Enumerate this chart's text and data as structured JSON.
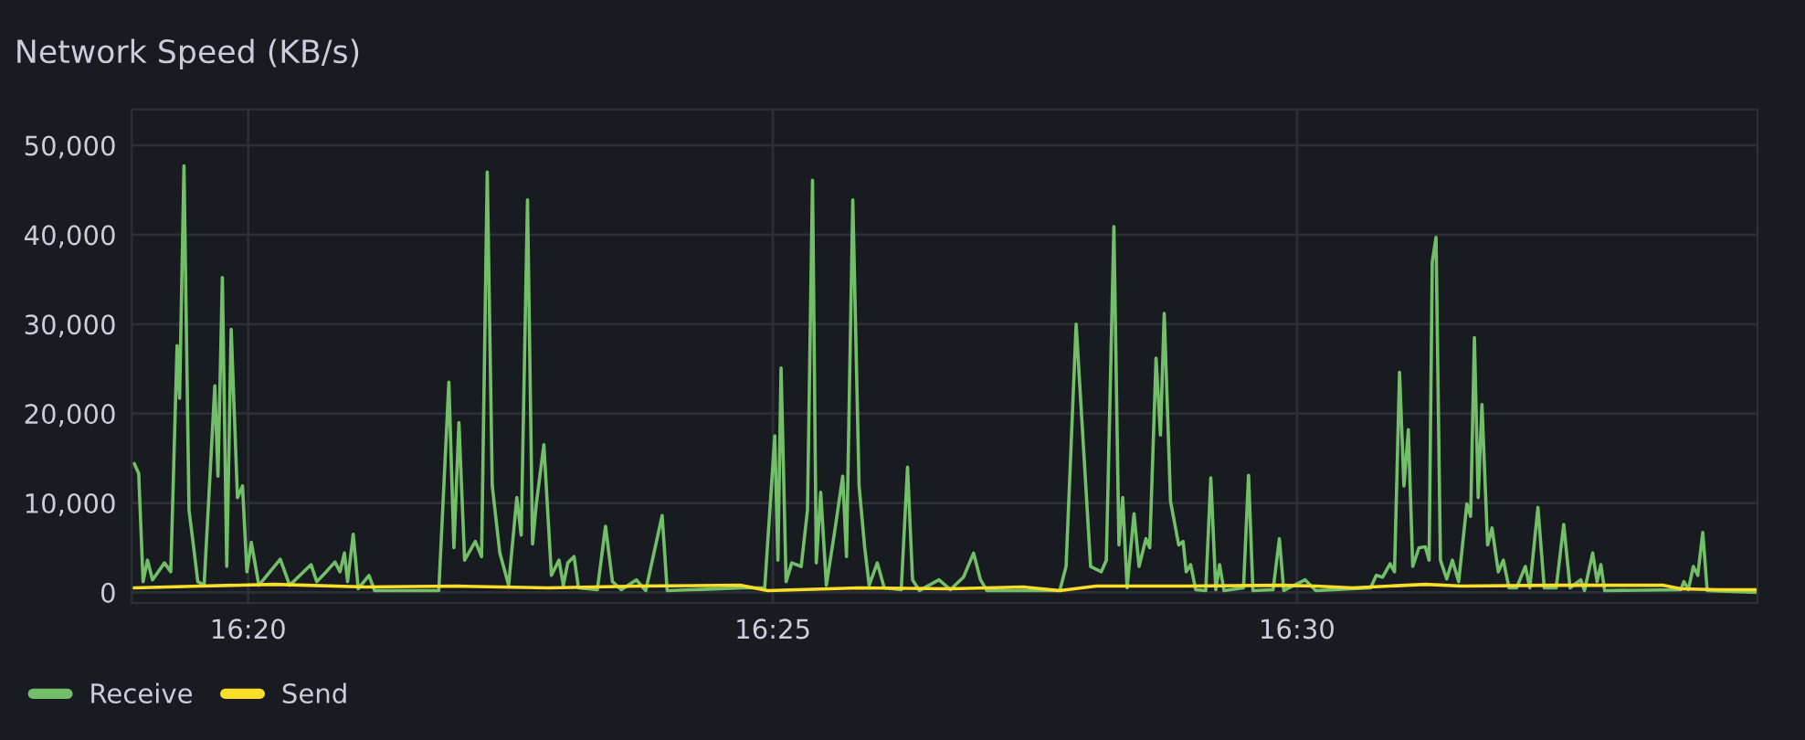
{
  "chart_data": {
    "type": "line",
    "title": "Network Speed (KB/s)",
    "xlim": [
      16.3148,
      16.5732
    ],
    "xticks": [
      {
        "value": 16.3333,
        "label": "16:20"
      },
      {
        "value": 16.4167,
        "label": "16:25"
      },
      {
        "value": 16.5,
        "label": "16:30"
      }
    ],
    "ylim": [
      -1200,
      54000
    ],
    "yticks": [
      0,
      {
        "value": 10000,
        "label": "10,000"
      },
      {
        "value": 20000,
        "label": "20,000"
      },
      {
        "value": 30000,
        "label": "30,000"
      },
      {
        "value": 40000,
        "label": "40,000"
      },
      {
        "value": 50000,
        "label": "50,000"
      }
    ],
    "grid": true,
    "legend": "bottom left",
    "marker": "none",
    "line_style": "solid",
    "series": [
      {
        "name": "Receive",
        "color": "#73bf69",
        "x": [
          16.3152,
          16.3159,
          16.3166,
          16.3173,
          16.3181,
          16.32,
          16.321,
          16.322,
          16.3224,
          16.3231,
          16.3239,
          16.3244,
          16.3253,
          16.3263,
          16.328,
          16.3285,
          16.3292,
          16.3299,
          16.3306,
          16.3316,
          16.3324,
          16.3331,
          16.3338,
          16.335,
          16.3384,
          16.3399,
          16.3433,
          16.3442,
          16.3457,
          16.3471,
          16.3479,
          16.3486,
          16.3491,
          16.35,
          16.3508,
          16.3525,
          16.3534,
          16.3636,
          16.3652,
          16.366,
          16.3668,
          16.3677,
          16.3694,
          16.3704,
          16.3713,
          16.3721,
          16.3733,
          16.3747,
          16.376,
          16.3767,
          16.3777,
          16.3785,
          16.3791,
          16.3803,
          16.3815,
          16.3827,
          16.3834,
          16.3841,
          16.3851,
          16.3858,
          16.3888,
          16.3901,
          16.3912,
          16.3926,
          16.395,
          16.3965,
          16.3991,
          16.3999,
          16.412,
          16.4154,
          16.417,
          16.4175,
          16.418,
          16.4188,
          16.4197,
          16.4212,
          16.4222,
          16.423,
          16.4236,
          16.4243,
          16.4252,
          16.4265,
          16.4278,
          16.4284,
          16.4294,
          16.4304,
          16.4313,
          16.432,
          16.4333,
          16.4344,
          16.4371,
          16.4381,
          16.4389,
          16.44,
          16.4431,
          16.4449,
          16.447,
          16.4486,
          16.4497,
          16.4507,
          16.4623,
          16.4633,
          16.4649,
          16.4672,
          16.4689,
          16.4697,
          16.4709,
          16.4717,
          16.4723,
          16.473,
          16.4741,
          16.4749,
          16.476,
          16.4766,
          16.4776,
          16.4783,
          16.4789,
          16.4799,
          16.4812,
          16.4819,
          16.4824,
          16.4831,
          16.4839,
          16.4855,
          16.4863,
          16.4871,
          16.4877,
          16.4884,
          16.4915,
          16.4923,
          16.493,
          16.4962,
          16.4972,
          16.4979,
          16.5013,
          16.503,
          16.5117,
          16.5126,
          16.5136,
          16.5148,
          16.5155,
          16.5163,
          16.517,
          16.5177,
          16.5184,
          16.5194,
          16.5204,
          16.521,
          16.5215,
          16.5221,
          16.5228,
          16.5238,
          16.5247,
          16.5257,
          16.527,
          16.5276,
          16.5282,
          16.5288,
          16.5294,
          16.5303,
          16.531,
          16.532,
          16.5328,
          16.5337,
          16.5349,
          16.5363,
          16.537,
          16.5383,
          16.5393,
          16.5412,
          16.5424,
          16.5434,
          16.5451,
          16.5457,
          16.547,
          16.5477,
          16.5483,
          16.5489,
          16.561,
          16.5615,
          16.5622,
          16.563,
          16.5637,
          16.5645,
          16.5652,
          16.5731
        ],
        "values": [
          14400,
          13300,
          1200,
          3600,
          1400,
          3300,
          2300,
          27600,
          21700,
          47700,
          9200,
          6400,
          1200,
          800,
          23100,
          13000,
          35200,
          2900,
          29400,
          10600,
          11900,
          2300,
          5600,
          800,
          3700,
          800,
          3100,
          1200,
          2300,
          3400,
          2300,
          4400,
          1200,
          6500,
          400,
          1900,
          200,
          200,
          23500,
          5000,
          19000,
          3600,
          5700,
          4000,
          47000,
          11900,
          4400,
          800,
          10600,
          6400,
          43900,
          5400,
          9900,
          16500,
          1900,
          3600,
          800,
          3300,
          4000,
          500,
          300,
          7400,
          1200,
          300,
          1400,
          200,
          8600,
          200,
          500,
          500,
          17500,
          3600,
          25100,
          1200,
          3300,
          2900,
          9200,
          46100,
          3300,
          11200,
          800,
          6700,
          13000,
          4000,
          43900,
          11900,
          5000,
          800,
          3300,
          500,
          300,
          14000,
          1400,
          200,
          1400,
          300,
          1700,
          4400,
          1400,
          200,
          200,
          2900,
          30000,
          2900,
          2300,
          3600,
          40900,
          5300,
          10600,
          500,
          8800,
          2900,
          6000,
          5000,
          26200,
          17600,
          31200,
          10200,
          5300,
          5700,
          2300,
          3100,
          300,
          200,
          12800,
          300,
          3100,
          200,
          500,
          13100,
          200,
          300,
          6000,
          200,
          1400,
          200,
          500,
          1900,
          1700,
          3200,
          2300,
          24600,
          11900,
          18200,
          2900,
          5000,
          5100,
          3600,
          36900,
          39700,
          3600,
          1500,
          3600,
          1200,
          9900,
          8500,
          28500,
          10600,
          21000,
          5300,
          7200,
          2300,
          3600,
          500,
          500,
          2900,
          500,
          9500,
          500,
          500,
          7600,
          500,
          1400,
          200,
          4400,
          1200,
          3100,
          200,
          300,
          1200,
          300,
          2900,
          1900,
          6700,
          200,
          0
        ]
      },
      {
        "name": "Send",
        "color": "#fade2a",
        "x": [
          16.3151,
          16.3258,
          16.3375,
          16.352,
          16.3665,
          16.381,
          16.3955,
          16.4115,
          16.4159,
          16.4304,
          16.4449,
          16.4565,
          16.4623,
          16.4681,
          16.4826,
          16.4972,
          16.503,
          16.5088,
          16.5204,
          16.5262,
          16.5407,
          16.5581,
          16.561,
          16.5668,
          16.5732
        ],
        "values": [
          500,
          700,
          900,
          600,
          700,
          500,
          700,
          800,
          200,
          500,
          400,
          600,
          200,
          700,
          700,
          800,
          700,
          500,
          900,
          700,
          800,
          800,
          400,
          300,
          300
        ]
      }
    ]
  }
}
